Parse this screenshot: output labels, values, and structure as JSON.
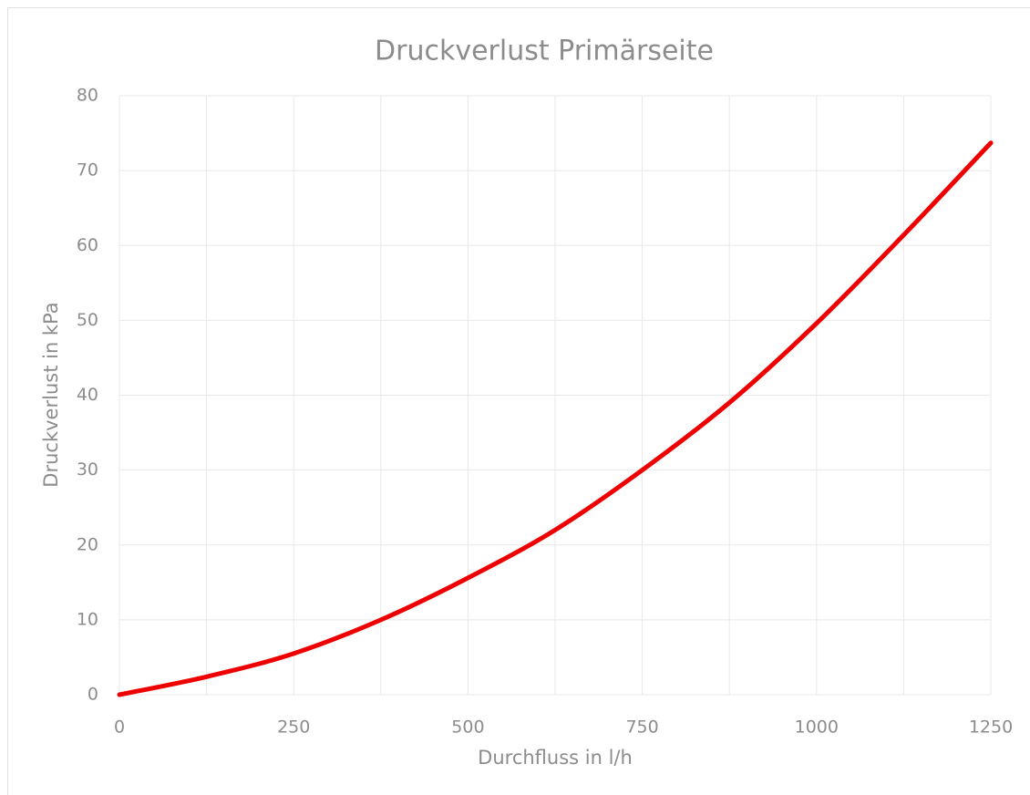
{
  "chart_data": {
    "type": "line",
    "title": "Druckverlust Primärseite",
    "x_label": "Durchfluss in l/h",
    "y_label": "Druckverlust in kPa",
    "x": [
      0,
      125,
      250,
      375,
      500,
      625,
      750,
      875,
      1000,
      1125,
      1250
    ],
    "series": [
      {
        "name": "Druckverlust",
        "color": "#ee0000",
        "values": [
          0,
          2.4,
          5.5,
          10,
          15.6,
          22,
          30,
          39,
          49.6,
          61.4,
          73.7
        ]
      }
    ],
    "xlim": [
      0,
      1250
    ],
    "xticks": [
      0,
      250,
      500,
      750,
      1000,
      1250
    ],
    "x_minor_ticks": [
      125,
      375,
      625,
      875,
      1125
    ],
    "ylim": [
      0,
      80
    ],
    "yticks": [
      0,
      10,
      20,
      30,
      40,
      50,
      60,
      70,
      80
    ],
    "grid": true
  }
}
